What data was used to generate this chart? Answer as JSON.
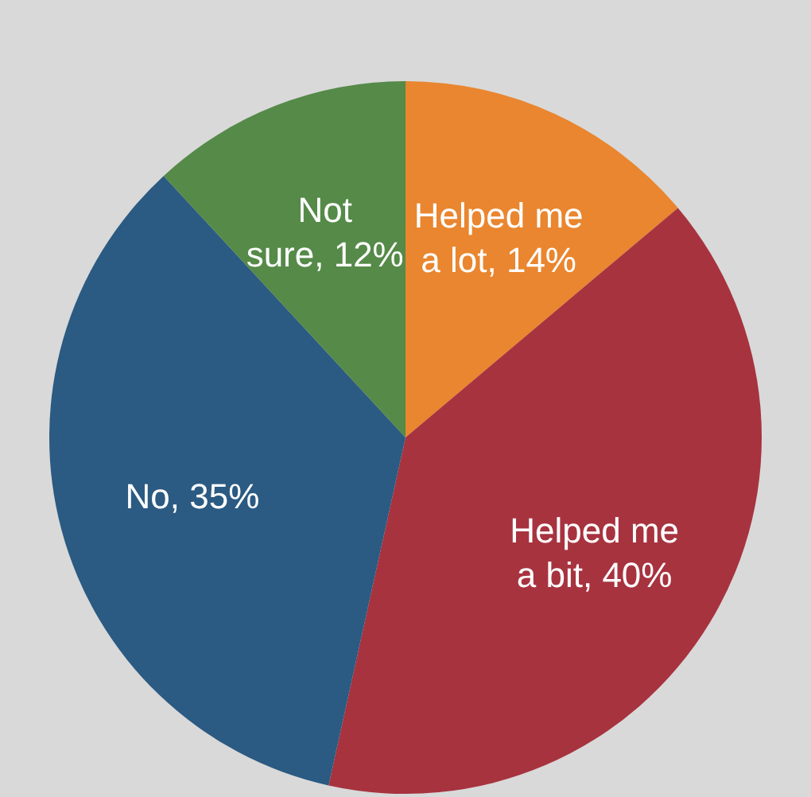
{
  "chart_data": {
    "type": "pie",
    "categories": [
      "Helped me a lot",
      "Helped me a bit",
      "No",
      "Not sure"
    ],
    "values": [
      14,
      40,
      35,
      12
    ],
    "value_labels": [
      ", 14%",
      ", 40%",
      ", 35%",
      ", 12%"
    ],
    "colors": [
      "#e9862f",
      "#a7333f",
      "#2b5a82",
      "#558a48"
    ]
  }
}
